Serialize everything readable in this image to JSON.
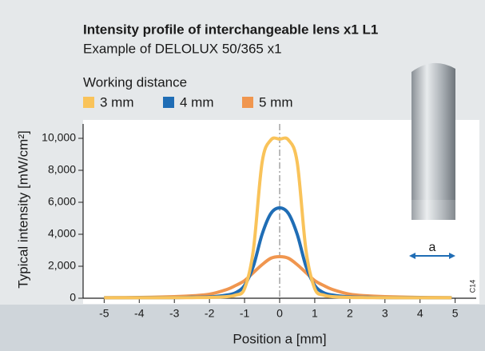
{
  "chart_data": {
    "type": "line",
    "title": "Intensity profile of interchangeable lens x1 L1",
    "subtitle": "Example of DELOLUX 50/365 x1",
    "legend_title": "Working distance",
    "x_label": "Position a [mm]",
    "y_label": "Typical intensity [mW/cm²]",
    "annotations": [
      "C14",
      "a"
    ],
    "x": [
      -5,
      -4,
      -3,
      -2.5,
      -2,
      -1.5,
      -1.25,
      -1,
      -0.75,
      -0.5,
      -0.25,
      0,
      0.25,
      0.5,
      0.75,
      1,
      1.25,
      1.5,
      2,
      2.5,
      3,
      4,
      4.9
    ],
    "series": [
      {
        "name": "3 mm",
        "color": "#f9c35a",
        "values": [
          30,
          30,
          35,
          40,
          50,
          100,
          200,
          600,
          3000,
          8500,
          9900,
          9950,
          9900,
          8500,
          3000,
          600,
          200,
          100,
          50,
          40,
          35,
          30,
          30
        ]
      },
      {
        "name": "4 mm",
        "color": "#1f6db5",
        "values": [
          30,
          35,
          40,
          60,
          80,
          200,
          350,
          800,
          2000,
          4000,
          5300,
          5650,
          5300,
          4000,
          2000,
          800,
          350,
          200,
          80,
          60,
          40,
          35,
          30
        ]
      },
      {
        "name": "5 mm",
        "color": "#f0964f",
        "values": [
          30,
          50,
          100,
          150,
          250,
          550,
          800,
          1100,
          1600,
          2100,
          2500,
          2600,
          2500,
          2100,
          1600,
          1100,
          800,
          550,
          250,
          150,
          100,
          50,
          30
        ]
      }
    ],
    "xlim": [
      -5.6,
      5.6
    ],
    "ylim": [
      0,
      10900
    ],
    "xticks": [
      -5,
      -4,
      -3,
      -2,
      -1,
      0,
      1,
      2,
      3,
      4,
      5
    ],
    "yticks": [
      0,
      {
        "value": 2000,
        "label": "2,000"
      },
      {
        "value": 4000,
        "label": "4,000"
      },
      {
        "value": 6000,
        "label": "6,000"
      },
      {
        "value": 8000,
        "label": "8,000"
      },
      {
        "value": 10000,
        "label": "10,000"
      }
    ],
    "center_line": 0
  }
}
